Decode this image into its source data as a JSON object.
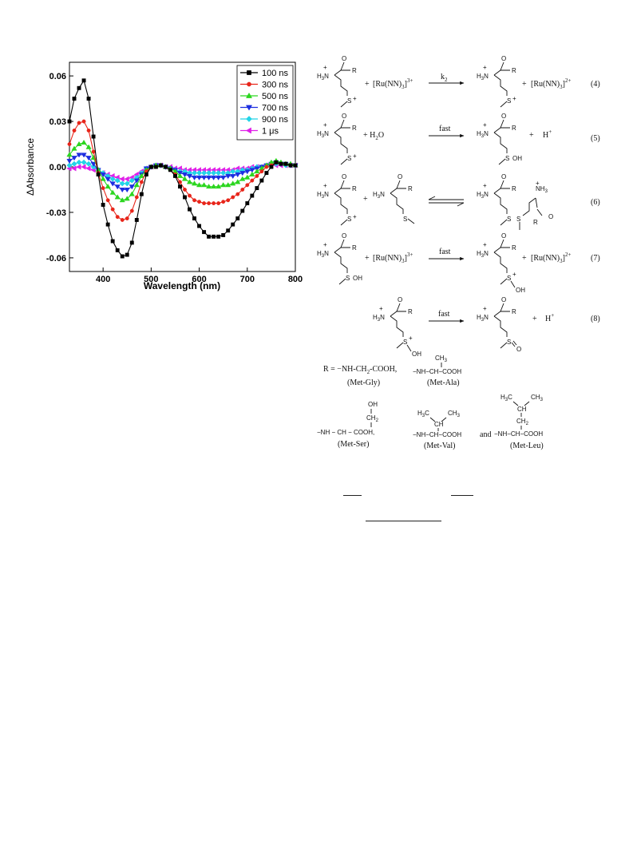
{
  "chart_data": {
    "type": "line",
    "xlabel": "Wavelength (nm)",
    "ylabel": "ΔAbsorbance",
    "xlim": [
      330,
      800
    ],
    "ylim": [
      -0.069,
      0.069
    ],
    "xticks": [
      400,
      500,
      600,
      700,
      800
    ],
    "yticks": [
      0.06,
      0.03,
      0.0,
      -0.03,
      -0.06
    ],
    "ytick_labels": [
      "0.06",
      "0.03",
      "0.00",
      "-0.03",
      "-0.06"
    ],
    "grid": false,
    "legend": "top-right",
    "x": [
      330,
      340,
      350,
      360,
      370,
      380,
      390,
      400,
      410,
      420,
      430,
      440,
      450,
      460,
      470,
      480,
      490,
      500,
      510,
      520,
      530,
      540,
      550,
      560,
      570,
      580,
      590,
      600,
      610,
      620,
      630,
      640,
      650,
      660,
      670,
      680,
      690,
      700,
      710,
      720,
      730,
      740,
      750,
      760,
      770,
      780,
      790,
      800
    ],
    "series": [
      {
        "name": "100 ns",
        "color": "#000000",
        "marker": "square",
        "values": [
          0.03,
          0.045,
          0.052,
          0.057,
          0.045,
          0.02,
          -0.005,
          -0.025,
          -0.038,
          -0.049,
          -0.055,
          -0.059,
          -0.058,
          -0.05,
          -0.035,
          -0.018,
          -0.005,
          0.0,
          0.0,
          0.001,
          0.0,
          -0.002,
          -0.006,
          -0.013,
          -0.02,
          -0.028,
          -0.034,
          -0.039,
          -0.043,
          -0.046,
          -0.046,
          -0.046,
          -0.045,
          -0.042,
          -0.038,
          -0.034,
          -0.029,
          -0.024,
          -0.019,
          -0.014,
          -0.009,
          -0.004,
          0.0,
          0.003,
          0.002,
          0.002,
          0.001,
          0.001
        ]
      },
      {
        "name": "300 ns",
        "color": "#e8251a",
        "marker": "circle",
        "values": [
          0.015,
          0.024,
          0.029,
          0.03,
          0.024,
          0.01,
          -0.004,
          -0.014,
          -0.022,
          -0.028,
          -0.033,
          -0.035,
          -0.034,
          -0.029,
          -0.02,
          -0.01,
          -0.003,
          0.0,
          0.0,
          0.001,
          0.0,
          -0.002,
          -0.005,
          -0.01,
          -0.015,
          -0.019,
          -0.022,
          -0.023,
          -0.024,
          -0.024,
          -0.024,
          -0.024,
          -0.023,
          -0.022,
          -0.02,
          -0.018,
          -0.015,
          -0.012,
          -0.009,
          -0.006,
          -0.003,
          0.0,
          0.001,
          0.003,
          0.002,
          0.002,
          0.001,
          0.001
        ]
      },
      {
        "name": "500 ns",
        "color": "#2bd61f",
        "marker": "triangle-up",
        "values": [
          0.008,
          0.012,
          0.015,
          0.016,
          0.013,
          0.006,
          -0.002,
          -0.008,
          -0.013,
          -0.017,
          -0.02,
          -0.022,
          -0.021,
          -0.018,
          -0.012,
          -0.006,
          -0.002,
          0.0,
          0.001,
          0.001,
          0.0,
          -0.001,
          -0.003,
          -0.006,
          -0.008,
          -0.01,
          -0.011,
          -0.012,
          -0.012,
          -0.013,
          -0.013,
          -0.013,
          -0.012,
          -0.012,
          -0.011,
          -0.01,
          -0.008,
          -0.007,
          -0.005,
          -0.003,
          -0.001,
          0.001,
          0.003,
          0.004,
          0.003,
          0.002,
          0.002,
          0.001
        ]
      },
      {
        "name": "700 ns",
        "color": "#1c2ee0",
        "marker": "triangle-down",
        "values": [
          0.004,
          0.006,
          0.008,
          0.008,
          0.006,
          0.002,
          -0.002,
          -0.005,
          -0.008,
          -0.011,
          -0.013,
          -0.015,
          -0.015,
          -0.013,
          -0.009,
          -0.005,
          -0.001,
          0.0,
          0.001,
          0.001,
          0.0,
          -0.001,
          -0.002,
          -0.004,
          -0.005,
          -0.006,
          -0.007,
          -0.007,
          -0.007,
          -0.007,
          -0.007,
          -0.007,
          -0.007,
          -0.006,
          -0.006,
          -0.005,
          -0.004,
          -0.003,
          -0.002,
          -0.001,
          0.0,
          0.001,
          0.002,
          0.003,
          0.002,
          0.002,
          0.001,
          0.001
        ]
      },
      {
        "name": "900 ns",
        "color": "#22d4e8",
        "marker": "diamond",
        "values": [
          0.001,
          0.002,
          0.003,
          0.003,
          0.002,
          0.0,
          -0.002,
          -0.004,
          -0.006,
          -0.008,
          -0.009,
          -0.011,
          -0.011,
          -0.009,
          -0.007,
          -0.004,
          -0.001,
          0.0,
          0.001,
          0.001,
          0.0,
          -0.001,
          -0.002,
          -0.003,
          -0.003,
          -0.004,
          -0.004,
          -0.004,
          -0.004,
          -0.004,
          -0.004,
          -0.004,
          -0.004,
          -0.004,
          -0.003,
          -0.003,
          -0.002,
          -0.002,
          -0.001,
          0.0,
          0.0,
          0.001,
          0.002,
          0.002,
          0.002,
          0.001,
          0.001,
          0.001
        ]
      },
      {
        "name": "1 μs",
        "color": "#e020e8",
        "marker": "triangle-left",
        "values": [
          -0.001,
          -0.001,
          0.0,
          0.0,
          -0.001,
          -0.002,
          -0.003,
          -0.004,
          -0.005,
          -0.006,
          -0.007,
          -0.008,
          -0.008,
          -0.007,
          -0.005,
          -0.003,
          -0.001,
          0.0,
          0.001,
          0.001,
          0.0,
          0.0,
          -0.001,
          -0.001,
          -0.002,
          -0.002,
          -0.002,
          -0.002,
          -0.002,
          -0.002,
          -0.002,
          -0.002,
          -0.002,
          -0.002,
          -0.002,
          -0.001,
          -0.001,
          -0.001,
          0.0,
          0.0,
          0.0,
          0.001,
          0.001,
          0.001,
          0.001,
          0.001,
          0.001,
          0.001
        ]
      }
    ]
  },
  "scheme": {
    "k2": "k",
    "k2_sub": "2",
    "fast": "fast",
    "h3n": "H",
    "h3n_sub": "3",
    "h3n_n": "N",
    "plus": "+",
    "nh2": "NH",
    "nh2_sub": "2",
    "nh3": "NH",
    "nh3_sub": "3",
    "r": "R",
    "o": "O",
    "s": "S",
    "oh": "OH",
    "h2o": "+ H",
    "h2o_sub": "2",
    "h2o_o": "O",
    "hplus": "H",
    "ru3": "[Ru(NN)",
    "ru_sub": "3",
    "ru_close": "]",
    "charge3": "3+",
    "charge2": "2+",
    "eq4": "(4)",
    "eq5": "(5)",
    "eq6": "(6)",
    "eq7": "(7)",
    "eq8": "(8)",
    "r_def": "R = −NH-CH",
    "r_def_sub": "2",
    "r_def_tail": "-COOH,",
    "met_gly": "(Met-Gly)",
    "met_ala": "(Met-Ala)",
    "met_ser": "(Met-Ser)",
    "met_val": "(Met-Val)",
    "met_leu": "(Met-Leu)",
    "ala_group": "−NH−CH−COOH",
    "ser_group": "−NH − CH − COOH,",
    "val_group": "−NH−CH−COOH",
    "leu_group": "−NH−CH−COOH",
    "and": "and",
    "ch3": "CH",
    "ch3_sub": "3",
    "ch2": "CH",
    "ch2_sub": "2",
    "ch": "CH",
    "h3c": "H",
    "h3c_sub": "3",
    "h3c_c": "C"
  }
}
